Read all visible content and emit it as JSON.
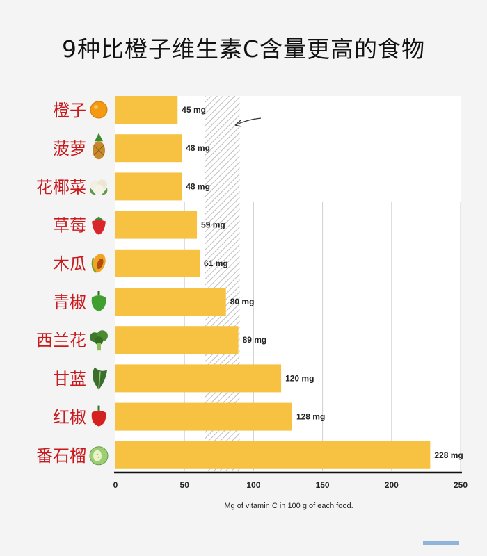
{
  "title": "9种比橙子维生素C含量更高的食物",
  "caption": "Mg of vitamin C in 100 g of each food.",
  "colors": {
    "bar": "#f7c242",
    "label": "#c8191d",
    "value": "#222222",
    "grid": "#cfcfcf",
    "hatch": "#bdbdbd"
  },
  "chart_data": {
    "type": "bar",
    "orientation": "horizontal",
    "categories": [
      "橙子",
      "菠萝",
      "花椰菜",
      "草莓",
      "木瓜",
      "青椒",
      "西兰花",
      "甘蓝",
      "红椒",
      "番石榴"
    ],
    "values": [
      45,
      48,
      48,
      59,
      61,
      80,
      89,
      120,
      128,
      228
    ],
    "value_labels": [
      "45 mg",
      "48 mg",
      "48 mg",
      "59 mg",
      "61 mg",
      "80 mg",
      "89 mg",
      "120 mg",
      "128 mg",
      "228 mg"
    ],
    "icons": [
      "orange-icon",
      "pineapple-icon",
      "cauliflower-icon",
      "strawberry-icon",
      "papaya-icon",
      "green-pepper-icon",
      "broccoli-icon",
      "kale-icon",
      "red-pepper-icon",
      "guava-icon"
    ],
    "xlim": [
      0,
      250
    ],
    "xticks": [
      0,
      50,
      100,
      150,
      200,
      250
    ],
    "xtick_labels": [
      "0",
      "50",
      "100",
      "150",
      "200",
      "250"
    ],
    "xlabel": "Mg of vitamin C in 100 g of each food.",
    "reference_band": [
      65,
      90
    ],
    "grid": true
  }
}
